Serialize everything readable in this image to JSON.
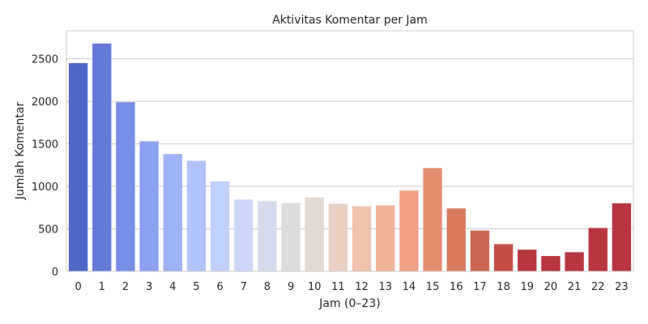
{
  "chart_data": {
    "type": "bar",
    "title": "Aktivitas Komentar per Jam",
    "xlabel": "Jam (0–23)",
    "ylabel": "Jumlah Komentar",
    "categories": [
      "0",
      "1",
      "2",
      "3",
      "4",
      "5",
      "6",
      "7",
      "8",
      "9",
      "10",
      "11",
      "12",
      "13",
      "14",
      "15",
      "16",
      "17",
      "18",
      "19",
      "20",
      "21",
      "22",
      "23"
    ],
    "values": [
      2450,
      2680,
      1990,
      1530,
      1380,
      1300,
      1060,
      845,
      825,
      805,
      870,
      795,
      765,
      775,
      950,
      1215,
      740,
      480,
      320,
      255,
      180,
      225,
      510,
      800
    ],
    "ylim": [
      0,
      2830
    ],
    "yticks": [
      0,
      500,
      1000,
      1500,
      2000,
      2500
    ],
    "grid": true,
    "colormap": "coolwarm",
    "colors": [
      "#5166c9",
      "#6479d8",
      "#778de6",
      "#8ba1f0",
      "#9db2f7",
      "#b0c3fb",
      "#c1cffd",
      "#cdd8f9",
      "#d6dcee",
      "#dcdcdf",
      "#e3d9d3",
      "#ead0c3",
      "#efc2ad",
      "#f1b297",
      "#f0a183",
      "#e58e70",
      "#d97a5f",
      "#cc6551",
      "#c34f47",
      "#b7363f",
      "#b7363f",
      "#b7363f",
      "#b7363f",
      "#b7363f"
    ]
  }
}
